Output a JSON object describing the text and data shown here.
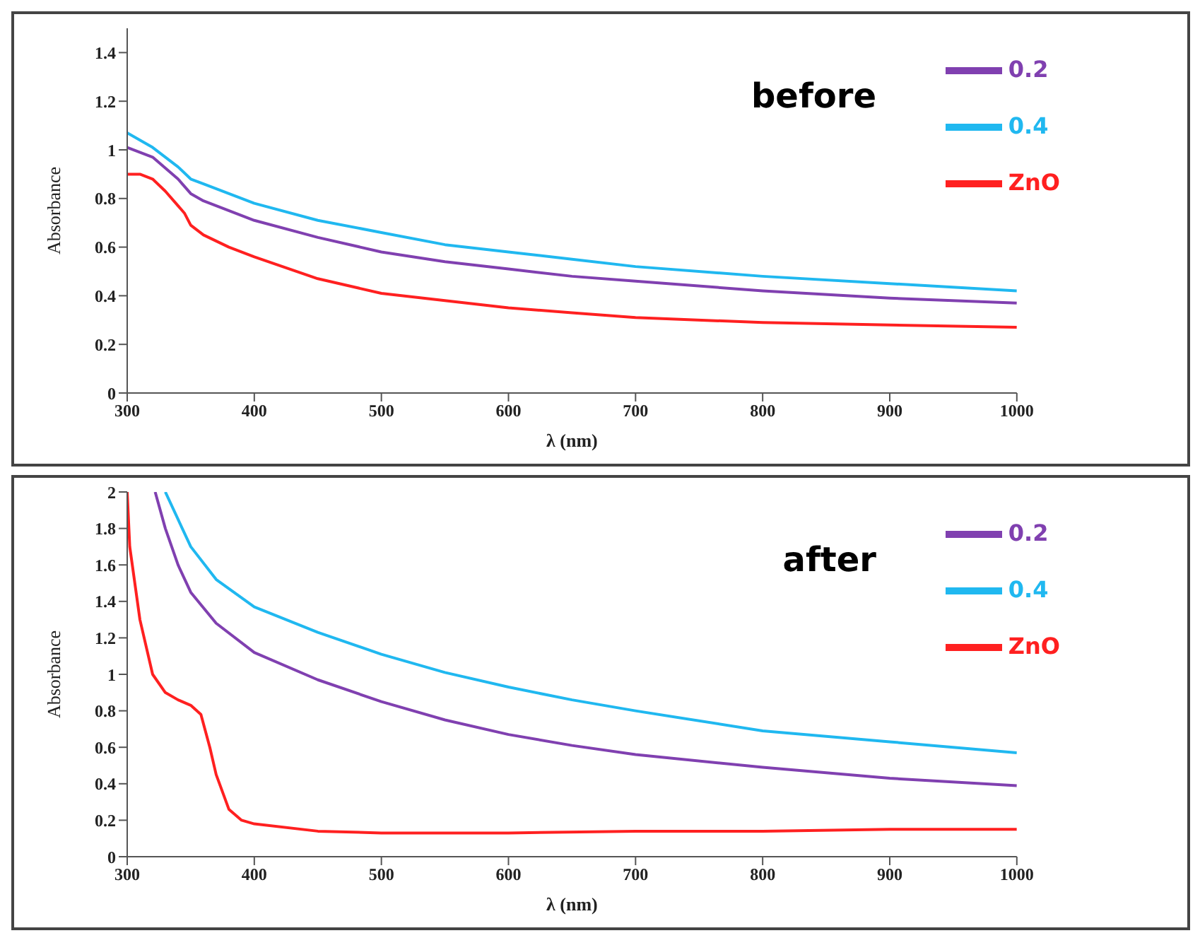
{
  "chart_data": [
    {
      "type": "line",
      "xlabel": "λ (nm)",
      "ylabel": "Absorbance",
      "annotations": [
        "before"
      ],
      "xlim": [
        300,
        1000
      ],
      "xticks": [
        300,
        400,
        500,
        600,
        700,
        800,
        900,
        1000
      ],
      "ylim": [
        0,
        1.5
      ],
      "yticks": [
        0,
        0.2,
        0.4,
        0.6,
        0.8,
        1,
        1.2,
        1.4
      ],
      "grid": false,
      "legend": "top right",
      "marker": "none",
      "series": [
        {
          "name": "ZnO",
          "color": "#ff2020",
          "x": [
            300,
            310,
            320,
            330,
            340,
            345,
            350,
            360,
            380,
            400,
            450,
            500,
            550,
            600,
            650,
            700,
            800,
            900,
            1000
          ],
          "values": [
            0.9,
            0.9,
            0.88,
            0.83,
            0.77,
            0.74,
            0.69,
            0.65,
            0.6,
            0.56,
            0.47,
            0.41,
            0.38,
            0.35,
            0.33,
            0.31,
            0.29,
            0.28,
            0.27
          ]
        },
        {
          "name": "0.2",
          "color": "#8040b0",
          "x": [
            300,
            320,
            340,
            350,
            360,
            400,
            450,
            500,
            550,
            600,
            650,
            700,
            800,
            900,
            1000
          ],
          "values": [
            1.01,
            0.97,
            0.88,
            0.82,
            0.79,
            0.71,
            0.64,
            0.58,
            0.54,
            0.51,
            0.48,
            0.46,
            0.42,
            0.39,
            0.37
          ]
        },
        {
          "name": "0.4",
          "color": "#20b8f0",
          "x": [
            300,
            320,
            340,
            350,
            360,
            400,
            450,
            500,
            550,
            600,
            650,
            700,
            800,
            900,
            1000
          ],
          "values": [
            1.07,
            1.01,
            0.93,
            0.88,
            0.86,
            0.78,
            0.71,
            0.66,
            0.61,
            0.58,
            0.55,
            0.52,
            0.48,
            0.45,
            0.42
          ]
        }
      ]
    },
    {
      "type": "line",
      "xlabel": "λ (nm)",
      "ylabel": "Absorbance",
      "annotations": [
        "after"
      ],
      "xlim": [
        300,
        1000
      ],
      "xticks": [
        300,
        400,
        500,
        600,
        700,
        800,
        900,
        1000
      ],
      "ylim": [
        0,
        2
      ],
      "yticks": [
        0,
        0.2,
        0.4,
        0.6,
        0.8,
        1,
        1.2,
        1.4,
        1.6,
        1.8,
        2
      ],
      "grid": false,
      "legend": "top right",
      "marker": "none",
      "series": [
        {
          "name": "ZnO",
          "color": "#ff2020",
          "x": [
            300,
            302,
            310,
            320,
            330,
            340,
            350,
            358,
            365,
            370,
            380,
            390,
            400,
            450,
            500,
            600,
            700,
            800,
            900,
            1000
          ],
          "values": [
            2,
            1.7,
            1.3,
            1,
            0.9,
            0.86,
            0.83,
            0.78,
            0.6,
            0.45,
            0.26,
            0.2,
            0.18,
            0.14,
            0.13,
            0.13,
            0.14,
            0.14,
            0.15,
            0.15
          ]
        },
        {
          "name": "0.2",
          "color": "#8040b0",
          "x": [
            322,
            330,
            340,
            350,
            370,
            400,
            450,
            500,
            550,
            600,
            650,
            700,
            800,
            900,
            1000
          ],
          "values": [
            2,
            1.8,
            1.6,
            1.45,
            1.28,
            1.12,
            0.97,
            0.85,
            0.75,
            0.67,
            0.61,
            0.56,
            0.49,
            0.43,
            0.39
          ]
        },
        {
          "name": "0.4",
          "color": "#20b8f0",
          "x": [
            330,
            340,
            350,
            370,
            400,
            450,
            500,
            550,
            600,
            650,
            700,
            800,
            900,
            1000
          ],
          "values": [
            2,
            1.85,
            1.7,
            1.52,
            1.37,
            1.23,
            1.11,
            1.01,
            0.93,
            0.86,
            0.8,
            0.69,
            0.63,
            0.57
          ]
        }
      ]
    }
  ]
}
